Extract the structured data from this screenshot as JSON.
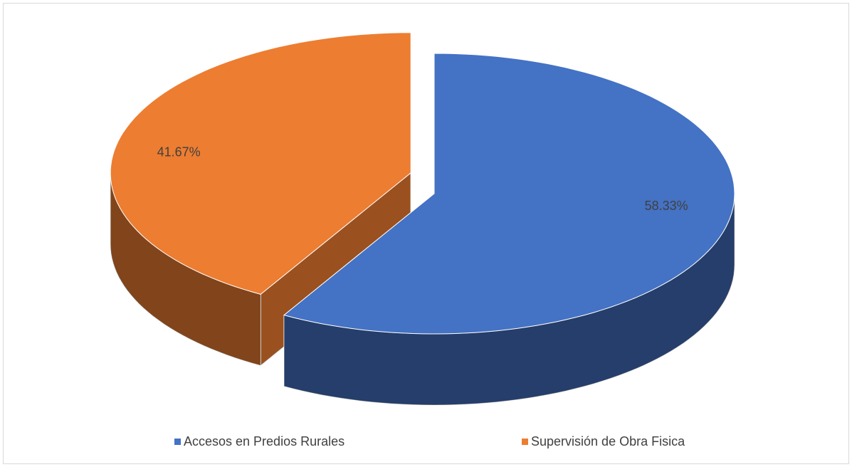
{
  "chart_data": {
    "type": "pie3d",
    "categories": [
      "Accesos en Predios Rurales",
      "Supervisión de Obra Fisica"
    ],
    "values": [
      58.33,
      41.67
    ],
    "value_labels": [
      "58.33%",
      "41.67%"
    ],
    "colors": [
      "#4472c4",
      "#ed7d31"
    ],
    "legend": "bottom"
  }
}
